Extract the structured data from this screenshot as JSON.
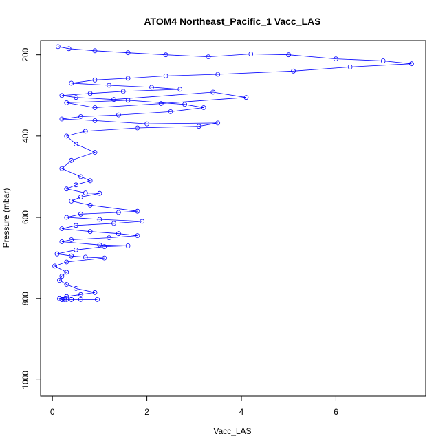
{
  "chart_data": {
    "type": "scatter",
    "title": "ATOM4 Northeast_Pacific_1 Vacc_LAS",
    "xlabel": "Vacc_LAS",
    "ylabel": "Pressure (mbar)",
    "xlim": [
      -0.25,
      7.9
    ],
    "ylim": [
      1040,
      165
    ],
    "y_reversed": true,
    "x_ticks": [
      0,
      2,
      4,
      6
    ],
    "y_ticks": [
      200,
      400,
      600,
      800,
      1000
    ],
    "x_tick_labels": [
      "0",
      "2",
      "4",
      "6"
    ],
    "y_tick_labels": [
      "200",
      "400",
      "600",
      "800",
      "1000"
    ],
    "series_color": "#0000ff",
    "marker": "open-circle",
    "connected": true,
    "series": [
      {
        "x": [
          0.12,
          0.35,
          0.9,
          1.6,
          2.4,
          3.3,
          4.2,
          5.0,
          6.0,
          7.0,
          7.6,
          6.3,
          5.1,
          3.5,
          2.4,
          1.6,
          0.9,
          0.4,
          1.2,
          2.1,
          2.7,
          1.5,
          0.8,
          0.2,
          0.5,
          1.3,
          3.4,
          4.1,
          2.3,
          0.9,
          0.3,
          1.6,
          2.8,
          3.2,
          2.5,
          1.4,
          0.6,
          0.2,
          0.9,
          2.0,
          3.5,
          3.1,
          1.8,
          0.7,
          0.3,
          0.5,
          0.9,
          0.4,
          0.2,
          0.6,
          0.8,
          0.5,
          0.3,
          0.7,
          1.0,
          0.6,
          0.4,
          0.8,
          1.8,
          1.4,
          0.6,
          0.3,
          1.0,
          1.9,
          1.3,
          0.5,
          0.2,
          0.8,
          1.4,
          1.8,
          1.2,
          0.4,
          0.2,
          1.0,
          1.6,
          1.1,
          0.5,
          0.1,
          0.4,
          0.7,
          1.1,
          0.3,
          0.05,
          0.3,
          0.2,
          0.15,
          0.3,
          0.5,
          0.9,
          0.6,
          0.3,
          0.15,
          0.2,
          0.25,
          0.4,
          0.2,
          0.3,
          0.6,
          0.95,
          0.4,
          0.2
        ],
        "y": [
          180,
          185,
          190,
          195,
          200,
          205,
          198,
          200,
          210,
          215,
          222,
          230,
          240,
          248,
          252,
          258,
          262,
          270,
          275,
          280,
          285,
          290,
          295,
          300,
          305,
          310,
          292,
          305,
          320,
          330,
          318,
          312,
          322,
          330,
          340,
          348,
          352,
          358,
          362,
          370,
          368,
          376,
          380,
          388,
          400,
          420,
          440,
          460,
          480,
          500,
          510,
          520,
          530,
          540,
          541,
          550,
          560,
          570,
          585,
          588,
          592,
          600,
          605,
          610,
          615,
          620,
          628,
          635,
          640,
          645,
          650,
          655,
          660,
          668,
          670,
          672,
          680,
          690,
          695,
          698,
          700,
          710,
          720,
          735,
          745,
          755,
          765,
          775,
          785,
          790,
          795,
          800,
          802,
          802,
          802,
          802,
          802,
          802,
          802,
          802,
          802
        ]
      }
    ]
  }
}
